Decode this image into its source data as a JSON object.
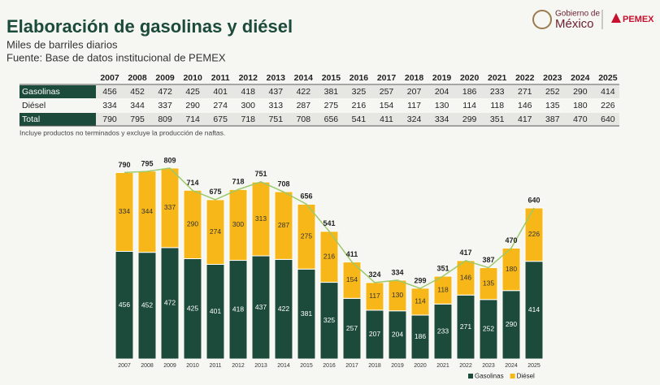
{
  "header": {
    "title": "Elaboración de gasolinas y diésel",
    "subtitle": "Miles de barriles diarios",
    "source": "Fuente: Base de datos institucional de PEMEX",
    "logo_line1": "Gobierno de",
    "logo_line2": "México",
    "logo_pemex": "PEMEX"
  },
  "note": "Incluye productos no terminados y excluye la producción de naftas.",
  "chart_data": {
    "type": "bar",
    "stacked": true,
    "categories": [
      "2007",
      "2008",
      "2009",
      "2010",
      "2011",
      "2012",
      "2013",
      "2014",
      "2015",
      "2016",
      "2017",
      "2018",
      "2019",
      "2020",
      "2021",
      "2022",
      "2023",
      "2024",
      "2025"
    ],
    "series": [
      {
        "name": "Gasolinas",
        "color": "#1c4a3b",
        "values": [
          456,
          452,
          472,
          425,
          401,
          418,
          437,
          422,
          381,
          325,
          257,
          207,
          204,
          186,
          233,
          271,
          252,
          290,
          414
        ]
      },
      {
        "name": "Diésel",
        "color": "#f7b718",
        "values": [
          334,
          344,
          337,
          290,
          274,
          300,
          313,
          287,
          275,
          216,
          154,
          117,
          130,
          114,
          118,
          146,
          135,
          180,
          226
        ]
      }
    ],
    "totals": {
      "name": "Total",
      "color": "#9cc96b",
      "values": [
        790,
        795,
        809,
        714,
        675,
        718,
        751,
        708,
        656,
        541,
        411,
        324,
        334,
        299,
        351,
        417,
        387,
        470,
        640
      ]
    },
    "ylim": [
      0,
      850
    ],
    "legend": "bottom-right"
  }
}
